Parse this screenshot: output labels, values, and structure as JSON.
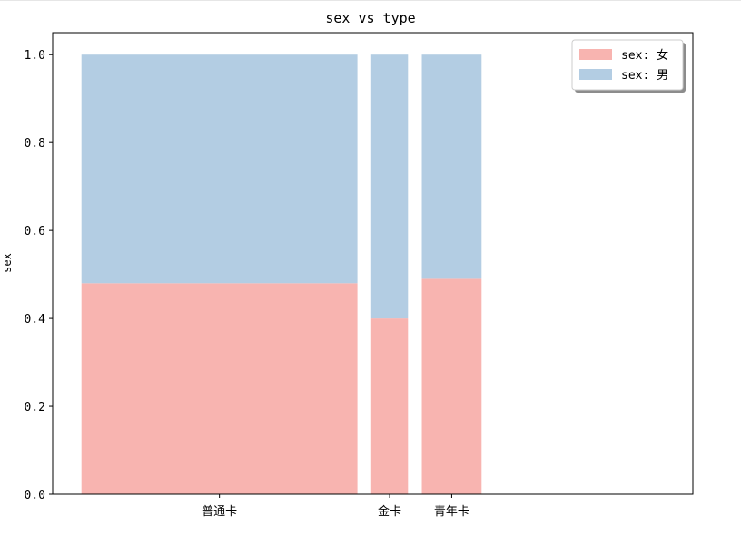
{
  "chart_data": {
    "type": "bar",
    "variant": "stacked-proportional-variable-width",
    "title": "sex vs type",
    "xlabel": "",
    "ylabel": "sex",
    "ylim": [
      0,
      1.05
    ],
    "yticks": [
      "0.0",
      "0.2",
      "0.4",
      "0.6",
      "0.8",
      "1.0"
    ],
    "categories": [
      "普通卡",
      "金卡",
      "青年卡"
    ],
    "widths": [
      0.6,
      0.08,
      0.13
    ],
    "series": [
      {
        "name": "sex: 女",
        "values": [
          0.48,
          0.4,
          0.49
        ],
        "color": "#f8b4b0"
      },
      {
        "name": "sex: 男",
        "values": [
          0.52,
          0.6,
          0.51
        ],
        "color": "#b3cde3"
      }
    ],
    "legend": "top-right",
    "grid": false
  }
}
